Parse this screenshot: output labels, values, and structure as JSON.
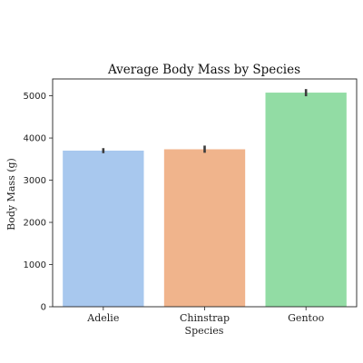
{
  "chart_data": {
    "type": "bar",
    "title": "Average Body Mass by Species",
    "xlabel": "Species",
    "ylabel": "Body Mass (g)",
    "categories": [
      "Adelie",
      "Chinstrap",
      "Gentoo"
    ],
    "values": [
      3701,
      3733,
      5076
    ],
    "error_low": [
      3640,
      3650,
      4990
    ],
    "error_high": [
      3760,
      3820,
      5160
    ],
    "colors": [
      "#a8c8ee",
      "#f0b48c",
      "#92dca4"
    ],
    "ylim": [
      0,
      5400
    ],
    "yticks": [
      0,
      1000,
      2000,
      3000,
      4000,
      5000
    ],
    "grid": false,
    "legend": "none"
  }
}
